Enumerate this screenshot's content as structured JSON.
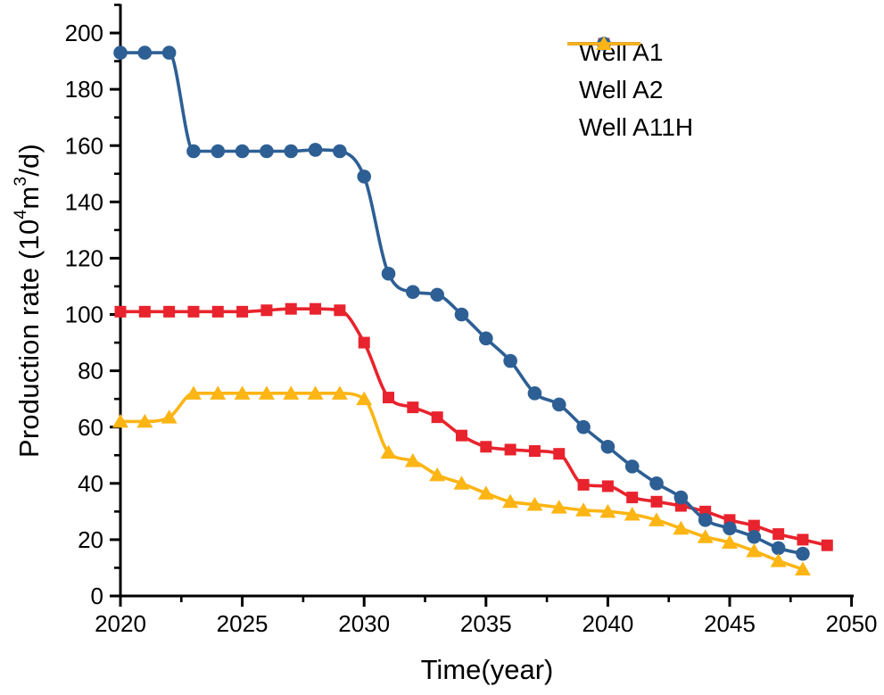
{
  "chart_data": {
    "type": "line",
    "title": "",
    "xlabel": "Time(year)",
    "ylabel": "Production rate (10⁴m³/d)",
    "ylabel_parts": {
      "p1": "Production rate (10",
      "s1": "4",
      "p2": "m",
      "s2": "3",
      "p3": "/d)"
    },
    "grid": false,
    "legend_position": "inside-top-right",
    "axis_color": "#000000",
    "background_color": "#ffffff",
    "x_range": [
      2020,
      2050
    ],
    "y_range": [
      0,
      210
    ],
    "x_major_ticks": [
      2020,
      2025,
      2030,
      2035,
      2040,
      2045,
      2050
    ],
    "x_minor_ticks": [
      2022.5,
      2027.5,
      2032.5,
      2037.5,
      2042.5,
      2047.5
    ],
    "y_major_ticks": [
      0,
      20,
      40,
      60,
      80,
      100,
      120,
      140,
      160,
      180,
      200
    ],
    "y_minor_ticks": [
      10,
      30,
      50,
      70,
      90,
      110,
      130,
      150,
      170,
      190,
      210
    ],
    "series": [
      {
        "name": "Well A1",
        "color": "#e8232d",
        "marker": "square",
        "x": [
          2020,
          2021,
          2022,
          2023,
          2024,
          2025,
          2026,
          2027,
          2028,
          2029,
          2030,
          2031,
          2032,
          2033,
          2034,
          2035,
          2036,
          2037,
          2038,
          2039,
          2040,
          2041,
          2042,
          2043,
          2044,
          2045,
          2046,
          2047,
          2048,
          2049
        ],
        "y": [
          101,
          101,
          101,
          101,
          101,
          101,
          101.5,
          102,
          102,
          101.5,
          90,
          70.5,
          67,
          63.5,
          57,
          53,
          52,
          51.5,
          50.5,
          39.5,
          39,
          35,
          33.5,
          32,
          30,
          27,
          25,
          22,
          20,
          18
        ]
      },
      {
        "name": "Well A2",
        "color": "#2d5f94",
        "marker": "circle",
        "x": [
          2020,
          2021,
          2022,
          2023,
          2024,
          2025,
          2026,
          2027,
          2028,
          2029,
          2030,
          2031,
          2032,
          2033,
          2034,
          2035,
          2036,
          2037,
          2038,
          2039,
          2040,
          2041,
          2042,
          2043,
          2044,
          2045,
          2046,
          2047,
          2048
        ],
        "y": [
          193,
          193,
          193,
          158,
          158,
          158,
          158,
          158,
          158.5,
          158,
          149,
          114.5,
          108,
          107,
          100,
          91.5,
          83.5,
          72,
          68,
          60,
          53,
          46,
          40,
          35,
          27,
          24,
          21,
          17,
          15
        ]
      },
      {
        "name": "Well A11H",
        "color": "#fcb514",
        "marker": "triangle",
        "x": [
          2020,
          2021,
          2022,
          2023,
          2024,
          2025,
          2026,
          2027,
          2028,
          2029,
          2030,
          2031,
          2032,
          2033,
          2034,
          2035,
          2036,
          2037,
          2038,
          2039,
          2040,
          2041,
          2042,
          2043,
          2044,
          2045,
          2046,
          2047,
          2048
        ],
        "y": [
          62,
          62,
          63.5,
          72,
          72,
          72,
          72,
          72,
          72,
          72,
          70,
          51,
          48,
          43,
          40,
          36.5,
          33.5,
          32.5,
          31.5,
          30.5,
          30,
          29,
          27,
          24,
          21,
          19,
          16,
          12.5,
          9.5
        ]
      }
    ]
  }
}
